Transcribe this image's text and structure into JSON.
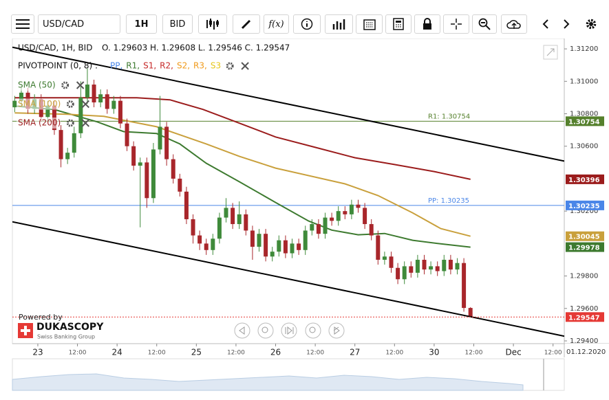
{
  "toolbar": {
    "instrument": "USD/CAD",
    "period": "1H",
    "side": "BID",
    "fx": "f(x)"
  },
  "chart_data": {
    "type": "candlestick",
    "title": "USD/CAD, 1H, BID",
    "ohlc_text": "O. 1.29603 H. 1.29608 L. 1.29546 C. 1.29547",
    "x": [
      -7,
      -5,
      -3,
      -1,
      1,
      3,
      5,
      7,
      9,
      11,
      13,
      15,
      17,
      19,
      21,
      23,
      25,
      27,
      29,
      31,
      33,
      35,
      37,
      39,
      41,
      43,
      45,
      47,
      49,
      51,
      53,
      55,
      57,
      59,
      61,
      63,
      65,
      67,
      69,
      71,
      73,
      75,
      77,
      79,
      81,
      83,
      85,
      87,
      89,
      91,
      93,
      95,
      97,
      99,
      101,
      103,
      105,
      107,
      109,
      111,
      113,
      115,
      117,
      119,
      121,
      123,
      125,
      127,
      129,
      131
    ],
    "open": [
      1.3084,
      1.3088,
      1.3093,
      1.3083,
      1.3089,
      1.3078,
      1.3085,
      1.307,
      1.3052,
      1.3056,
      1.3068,
      1.309,
      1.3098,
      1.3087,
      1.3092,
      1.3083,
      1.3088,
      1.3074,
      1.306,
      1.3048,
      1.305,
      1.3028,
      1.3058,
      1.3072,
      1.3052,
      1.304,
      1.3032,
      1.3015,
      1.3005,
      1.3,
      1.2996,
      1.3003,
      1.3016,
      1.3022,
      1.3012,
      1.3018,
      1.3008,
      1.2998,
      1.3006,
      1.2992,
      1.2995,
      1.3002,
      1.2994,
      1.3,
      1.2996,
      1.3008,
      1.3012,
      1.3006,
      1.3016,
      1.3014,
      1.302,
      1.3018,
      1.3024,
      1.3022,
      1.3012,
      1.3005,
      1.299,
      1.2992,
      1.2985,
      1.2978,
      1.2986,
      1.2982,
      1.299,
      1.2984,
      1.2986,
      1.2983,
      1.299,
      1.2984,
      1.2988,
      1.29603
    ],
    "high": [
      1.3091,
      1.3096,
      1.3096,
      1.3092,
      1.3092,
      1.3088,
      1.3088,
      1.3073,
      1.3059,
      1.3072,
      1.31,
      1.3108,
      1.3101,
      1.3095,
      1.3095,
      1.3091,
      1.3091,
      1.3077,
      1.3063,
      1.3053,
      1.3053,
      1.3062,
      1.3091,
      1.3075,
      1.3055,
      1.3043,
      1.3035,
      1.3018,
      1.3008,
      1.3003,
      1.3006,
      1.3019,
      1.3028,
      1.3025,
      1.3026,
      1.3021,
      1.3011,
      1.3009,
      1.3009,
      1.2998,
      1.3005,
      1.3005,
      1.3003,
      1.3003,
      1.3011,
      1.3015,
      1.3015,
      1.3019,
      1.3019,
      1.3023,
      1.3023,
      1.3027,
      1.3027,
      1.3025,
      1.3015,
      1.3008,
      1.2995,
      1.2995,
      1.2988,
      1.2989,
      1.2989,
      1.2993,
      1.2993,
      1.2989,
      1.2989,
      1.2993,
      1.2993,
      1.2991,
      1.2991,
      1.29608
    ],
    "low": [
      1.3081,
      1.3085,
      1.308,
      1.308,
      1.3075,
      1.3075,
      1.3067,
      1.3047,
      1.3049,
      1.3053,
      1.3065,
      1.3086,
      1.3084,
      1.3084,
      1.308,
      1.308,
      1.3071,
      1.3057,
      1.3045,
      1.301,
      1.3022,
      1.3025,
      1.3055,
      1.3048,
      1.3037,
      1.3029,
      1.3012,
      1.3,
      1.2996,
      1.2993,
      1.2993,
      1.3,
      1.3013,
      1.3009,
      1.3009,
      1.3005,
      1.299,
      1.2995,
      1.2989,
      1.2989,
      1.2992,
      1.2991,
      1.2991,
      1.2993,
      1.2993,
      1.3005,
      1.3003,
      1.3003,
      1.3011,
      1.3011,
      1.3015,
      1.3015,
      1.3019,
      1.3009,
      1.3002,
      1.2987,
      1.2987,
      1.2982,
      1.2975,
      1.2975,
      1.2979,
      1.2979,
      1.2981,
      1.2981,
      1.298,
      1.298,
      1.2981,
      1.2981,
      1.2958,
      1.29546
    ],
    "close": [
      1.3088,
      1.3093,
      1.3083,
      1.3089,
      1.3078,
      1.3085,
      1.307,
      1.3052,
      1.3056,
      1.3068,
      1.309,
      1.3098,
      1.3087,
      1.3092,
      1.3083,
      1.3088,
      1.3074,
      1.306,
      1.3048,
      1.305,
      1.3028,
      1.3058,
      1.3072,
      1.3052,
      1.304,
      1.3032,
      1.3015,
      1.3005,
      1.3,
      1.2996,
      1.3003,
      1.3016,
      1.3022,
      1.3012,
      1.3018,
      1.3008,
      1.2998,
      1.3006,
      1.2992,
      1.2995,
      1.3002,
      1.2994,
      1.3,
      1.2996,
      1.3008,
      1.3012,
      1.3006,
      1.3016,
      1.3014,
      1.302,
      1.3018,
      1.3024,
      1.3022,
      1.3012,
      1.3005,
      1.299,
      1.2992,
      1.2985,
      1.2978,
      1.2986,
      1.2982,
      1.299,
      1.2984,
      1.2986,
      1.2983,
      1.299,
      1.2984,
      1.2988,
      1.29603,
      1.29547
    ],
    "up_color": "#3f8a3a",
    "down_color": "#a8262b",
    "last_price_color": "#e53935",
    "xlim": [
      -7.7,
      159.4
    ],
    "xticks": [
      {
        "value": 0,
        "label": "23"
      },
      {
        "value": 12,
        "label": "12:00"
      },
      {
        "value": 24,
        "label": "24"
      },
      {
        "value": 36,
        "label": "12:00"
      },
      {
        "value": 48,
        "label": "25"
      },
      {
        "value": 60,
        "label": "12:00"
      },
      {
        "value": 72,
        "label": "26"
      },
      {
        "value": 84,
        "label": "12:00"
      },
      {
        "value": 96,
        "label": "27"
      },
      {
        "value": 108,
        "label": "12:00"
      },
      {
        "value": 120,
        "label": "30"
      },
      {
        "value": 132,
        "label": "12:00"
      },
      {
        "value": 144,
        "label": "Dec"
      },
      {
        "value": 156,
        "label": "12:00"
      }
    ],
    "ylim": [
      1.29383,
      1.31264
    ],
    "yticks": [
      {
        "value": 1.312,
        "label": "1.31200"
      },
      {
        "value": 1.31,
        "label": "1.31000"
      },
      {
        "value": 1.308,
        "label": "1.30800"
      },
      {
        "value": 1.306,
        "label": "1.30600"
      },
      {
        "value": 1.302,
        "label": "1.30200"
      },
      {
        "value": 1.298,
        "label": "1.29800"
      },
      {
        "value": 1.296,
        "label": "1.29600"
      },
      {
        "value": 1.294,
        "label": "1.29400"
      }
    ],
    "date_label": "01.12.2020",
    "pivot": {
      "label": "PIVOTPOINT (0, 8) :",
      "items": [
        {
          "name": "PP,",
          "color": "#4a86e8"
        },
        {
          "name": "R1,",
          "color": "#3d7a2f"
        },
        {
          "name": "S1,",
          "color": "#c62828"
        },
        {
          "name": "R2,",
          "color": "#c62828"
        },
        {
          "name": "S2,",
          "color": "#f09a1a"
        },
        {
          "name": "R3,",
          "color": "#f09a1a"
        },
        {
          "name": "S3",
          "color": "#e6c619"
        }
      ]
    },
    "levels": [
      {
        "label": "R1: 1.30754",
        "value": 1.30754,
        "color": "#55802c"
      },
      {
        "label": "PP: 1.30235",
        "value": 1.30235,
        "color": "#4a86e8"
      }
    ],
    "series": [
      {
        "name": "SMA (50)",
        "color": "#3d7a2f",
        "x": [
          -7,
          5,
          18,
          26,
          36,
          43,
          51,
          61,
          72,
          82,
          89,
          97,
          105,
          113.5,
          122,
          131
        ],
        "values": [
          1.30848,
          1.30826,
          1.3075,
          1.3069,
          1.30678,
          1.30614,
          1.30495,
          1.30381,
          1.30253,
          1.30139,
          1.30083,
          1.30054,
          1.30062,
          1.3002,
          1.29998,
          1.29978
        ]
      },
      {
        "name": "SMA (100)",
        "color": "#c9a03c",
        "x": [
          -7,
          9,
          20,
          36,
          51,
          61,
          72,
          93,
          103,
          113.5,
          122,
          131
        ],
        "values": [
          1.30805,
          1.30797,
          1.30784,
          1.3072,
          1.30614,
          1.30538,
          1.30465,
          1.30368,
          1.30296,
          1.30189,
          1.30092,
          1.30045
        ]
      },
      {
        "name": "SMA (200)",
        "color": "#9b1c1c",
        "x": [
          -7,
          10,
          30,
          40,
          50,
          60,
          72,
          84,
          96,
          108,
          120,
          131
        ],
        "values": [
          1.30899,
          1.30899,
          1.30899,
          1.30886,
          1.30827,
          1.3075,
          1.30657,
          1.30593,
          1.30529,
          1.30487,
          1.30444,
          1.30396
        ]
      }
    ],
    "trendlines": [
      {
        "color": "#000000",
        "x": [
          -7.7,
          159.4
        ],
        "values": [
          1.3121,
          1.30508
        ]
      },
      {
        "color": "#000000",
        "x": [
          -7.7,
          159.4
        ],
        "values": [
          1.30134,
          1.29429
        ]
      }
    ]
  },
  "branding": {
    "powered": "Powered by",
    "name": "DUKASCOPY",
    "tagline": "Swiss Banking Group"
  }
}
